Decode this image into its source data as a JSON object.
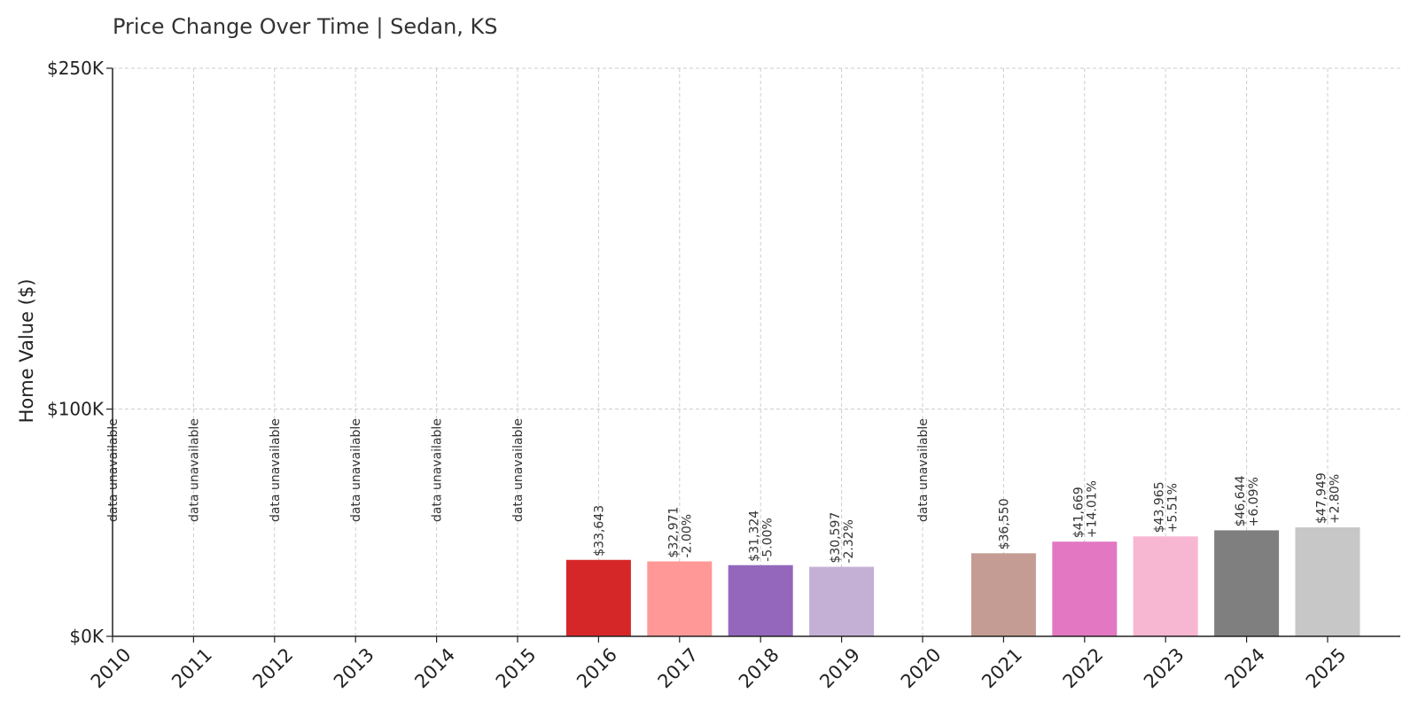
{
  "chart_data": {
    "type": "bar",
    "title": "Price Change Over Time | Sedan, KS",
    "xlabel": "",
    "ylabel": "Home Value ($)",
    "ylim": [
      0,
      250000
    ],
    "yticks": [
      {
        "value": 0,
        "label": "$0K"
      },
      {
        "value": 100000,
        "label": "$100K"
      },
      {
        "value": 250000,
        "label": "$250K"
      }
    ],
    "grid": true,
    "categories": [
      "2010",
      "2011",
      "2012",
      "2013",
      "2014",
      "2015",
      "2016",
      "2017",
      "2018",
      "2019",
      "2020",
      "2021",
      "2022",
      "2023",
      "2024",
      "2025"
    ],
    "values": [
      null,
      null,
      null,
      null,
      null,
      null,
      33643,
      32971,
      31324,
      30597,
      null,
      36550,
      41669,
      43965,
      46644,
      47949
    ],
    "value_labels": [
      "",
      "",
      "",
      "",
      "",
      "",
      "$33,643",
      "$32,971",
      "$31,324",
      "$30,597",
      "",
      "$36,550",
      "$41,669",
      "$43,965",
      "$46,644",
      "$47,949"
    ],
    "change_labels": [
      "",
      "",
      "",
      "",
      "",
      "",
      "",
      "-2.00%",
      "-5.00%",
      "-2.32%",
      "",
      "",
      "+14.01%",
      "+5.51%",
      "+6.09%",
      "+2.80%"
    ],
    "unavailable_label": "data unavailable",
    "colors": [
      "#1f77b4",
      "#aec7e8",
      "#ff7f0e",
      "#ffbb78",
      "#2ca02c",
      "#98df8a",
      "#d62728",
      "#ff9896",
      "#9467bd",
      "#c5b0d5",
      "#8c564b",
      "#c49c94",
      "#e377c2",
      "#f7b6d2",
      "#7f7f7f",
      "#c7c7c7"
    ]
  }
}
